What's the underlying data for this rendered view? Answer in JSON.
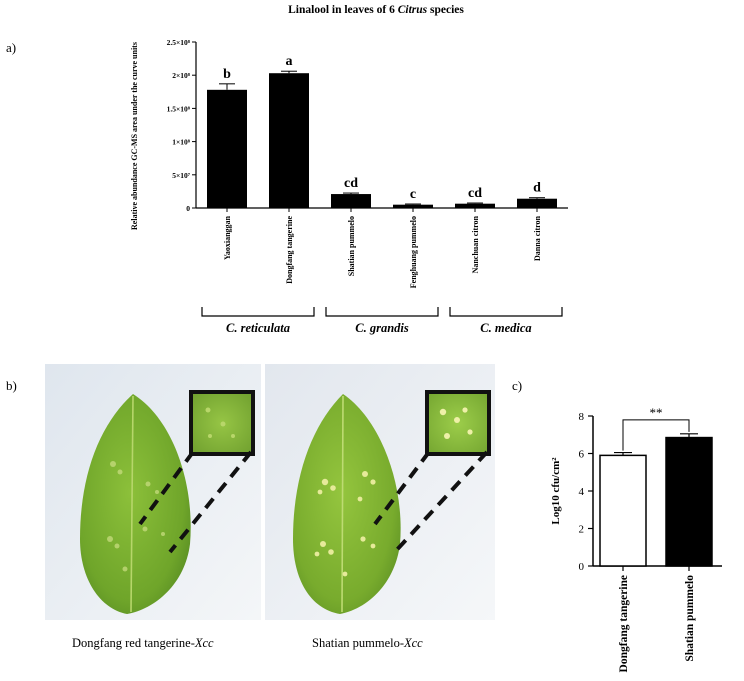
{
  "panels": {
    "a": "a)",
    "b": "b)",
    "c": "c)"
  },
  "chart_a": {
    "title_plain": "Linalool in leaves of 6 ",
    "title_italic": "Citrus",
    "title_end": " species",
    "ylabel": "Relative abundance GC-MS area under the curve units"
  },
  "chart_data": [
    {
      "type": "bar",
      "title": "Linalool in leaves of 6 Citrus species",
      "ylabel": "Relative abundance GC-MS area under the curve units",
      "ylim": [
        0,
        250000000
      ],
      "yticks": [
        0,
        50000000,
        100000000,
        150000000,
        200000000,
        250000000
      ],
      "ytick_labels": [
        "0",
        "5×10⁷",
        "1×10⁸",
        "1.5×10⁸",
        "2×10⁸",
        "2.5×10⁸"
      ],
      "categories": [
        "Yaoxianggan",
        "Dongfang  tangerine",
        "Shatian pummelo",
        "Fenghuang pummelo",
        "Nanchuan citron",
        "Danna citron"
      ],
      "values": [
        178000000,
        203000000,
        21000000,
        5000000,
        6500000,
        14000000
      ],
      "errors": [
        9000000,
        3000000,
        1500000,
        1000000,
        1000000,
        1500000
      ],
      "significance": [
        "b",
        "a",
        "cd",
        "c",
        "cd",
        "d"
      ],
      "groups": [
        {
          "label": "C. reticulata",
          "members": [
            0,
            1
          ]
        },
        {
          "label": "C. grandis",
          "members": [
            2,
            3
          ]
        },
        {
          "label": "C. medica",
          "members": [
            4,
            5
          ]
        }
      ],
      "color": "#000000"
    },
    {
      "type": "bar",
      "ylabel": "Log10 cfu/cm²",
      "ylim": [
        0,
        8
      ],
      "yticks": [
        0,
        2,
        4,
        6,
        8
      ],
      "categories": [
        "Dongfang tangerine",
        "Shatian pummelo"
      ],
      "values": [
        5.9,
        6.85
      ],
      "errors": [
        0.15,
        0.2
      ],
      "fills": [
        "#ffffff",
        "#000000"
      ],
      "annotation": "**"
    }
  ],
  "photos": {
    "left_caption": "Dongfang red tangerine-",
    "left_caption_italic": "Xcc",
    "right_caption": "Shatian pummelo-",
    "right_caption_italic": "Xcc"
  }
}
